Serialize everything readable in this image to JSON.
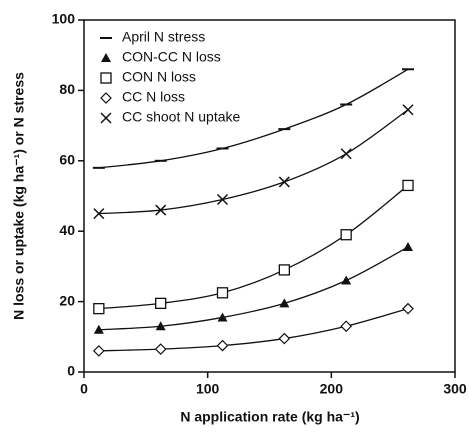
{
  "chart_data": {
    "type": "scatter",
    "xlabel": "N application rate (kg ha⁻¹)",
    "ylabel": "N loss or uptake (kg ha⁻¹) or N stress",
    "x": [
      12,
      62,
      112,
      162,
      212,
      262
    ],
    "series": [
      {
        "name": "April N stress",
        "marker": "dash",
        "color": "#111111",
        "values": [
          58,
          60,
          63.5,
          69,
          76,
          86
        ]
      },
      {
        "name": "CON-CC N loss",
        "marker": "triangle",
        "color": "#111111",
        "values": [
          12,
          13,
          15.5,
          19.5,
          26,
          35.5
        ]
      },
      {
        "name": "CON N loss",
        "marker": "square",
        "color": "#111111",
        "values": [
          18,
          19.5,
          22.5,
          29,
          39,
          53
        ]
      },
      {
        "name": "CC N loss",
        "marker": "diamond",
        "color": "#111111",
        "values": [
          6,
          6.5,
          7.5,
          9.5,
          13,
          18
        ]
      },
      {
        "name": "CC shoot N uptake",
        "marker": "x",
        "color": "#111111",
        "values": [
          45,
          46,
          49,
          54,
          62,
          74.5
        ]
      }
    ],
    "xlim": [
      0,
      300
    ],
    "xticks": [
      0,
      100,
      200,
      300
    ],
    "ylim": [
      0,
      100
    ],
    "yticks": [
      0,
      20,
      40,
      60,
      80,
      100
    ],
    "legend": "upper left"
  }
}
